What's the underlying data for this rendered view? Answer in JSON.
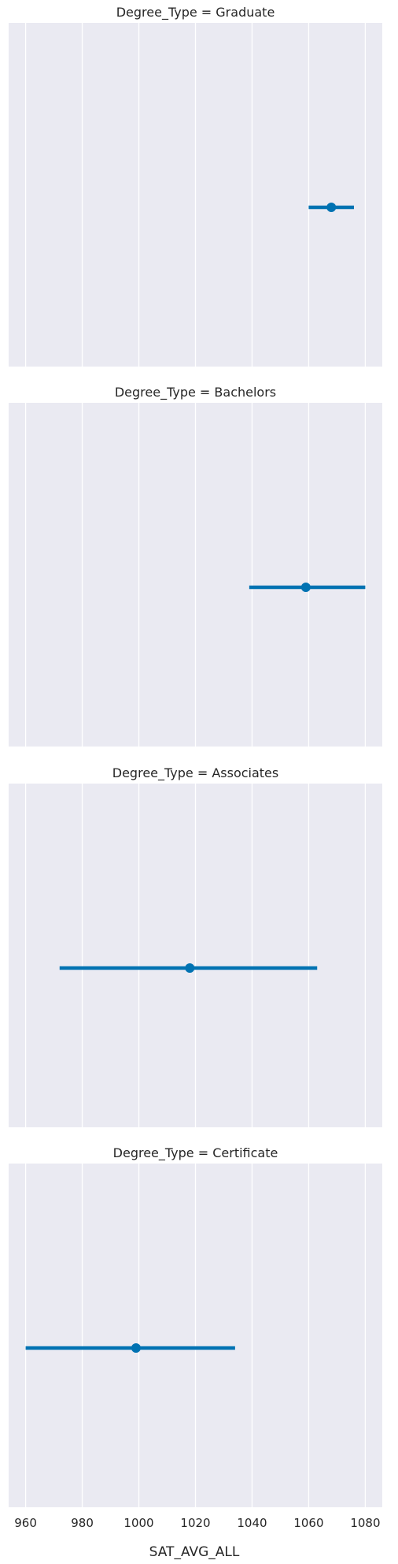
{
  "chart_data": {
    "type": "pointplot",
    "xlabel": "SAT_AVG_ALL",
    "xlim": [
      954,
      1086
    ],
    "xticks": [
      960,
      980,
      1000,
      1020,
      1040,
      1060,
      1080
    ],
    "grid": true,
    "colors": {
      "panel_bg": "#EAEAF2",
      "grid": "#FFFFFF",
      "series": "#0072B2"
    },
    "panels": [
      {
        "title": "Degree_Type = Graduate",
        "mean": 1068,
        "ci_low": 1060,
        "ci_high": 1076
      },
      {
        "title": "Degree_Type = Bachelors",
        "mean": 1059,
        "ci_low": 1039,
        "ci_high": 1080
      },
      {
        "title": "Degree_Type = Associates",
        "mean": 1018,
        "ci_low": 972,
        "ci_high": 1063
      },
      {
        "title": "Degree_Type = Certificate",
        "mean": 999,
        "ci_low": 960,
        "ci_high": 1034
      }
    ]
  }
}
